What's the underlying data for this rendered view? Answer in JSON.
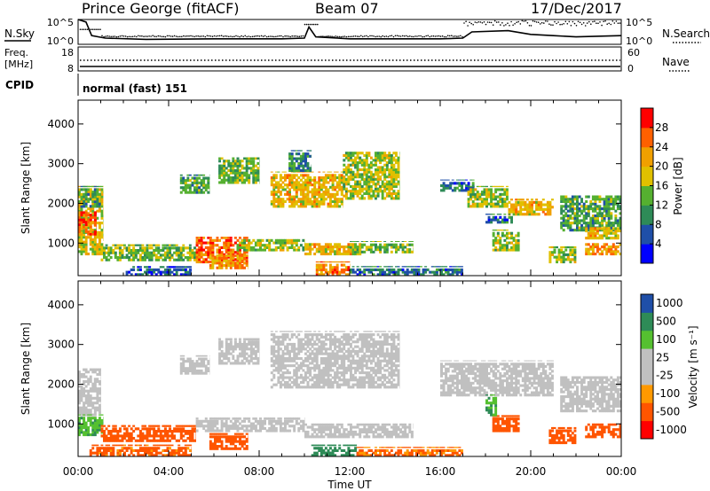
{
  "header": {
    "station": "Prince George (fitACF)",
    "beam": "Beam 07",
    "date": "17/Dec/2017"
  },
  "top_panels": {
    "nsky_label": "N.Sky",
    "nsky_ticks": [
      "10^5",
      "10^0"
    ],
    "nsearch_label": "N.Search",
    "nsearch_ticks": [
      "10^5",
      "10^0"
    ],
    "freq_label_line1": "Freq.",
    "freq_label_line2": "[MHz]",
    "freq_ticks": [
      "18",
      "8"
    ],
    "nave_label": "Nave",
    "nave_ticks": [
      "60",
      "0"
    ],
    "cpid_label": "CPID",
    "cpid_value": "normal (fast) 151"
  },
  "colors": {
    "power_scale": [
      "#0000ff",
      "#1f4fa8",
      "#2e8b57",
      "#55b030",
      "#e0c000",
      "#f0a000",
      "#ff6000",
      "#ff0000"
    ],
    "velocity_scale": [
      "#ff0000",
      "#ff5500",
      "#ff9900",
      "#c0c0c0",
      "#c0c0c0",
      "#55c030",
      "#2e8b57",
      "#1f4fa8"
    ]
  },
  "chart_data": [
    {
      "type": "heatmap",
      "title": "",
      "xlabel": "Time UT",
      "ylabel": "Slant Range [km]",
      "x_ticks": [
        "00:00",
        "04:00",
        "08:00",
        "12:00",
        "16:00",
        "20:00",
        "00:00"
      ],
      "x_range_hours": [
        0,
        24
      ],
      "y_ticks": [
        "1000",
        "2000",
        "3000",
        "4000"
      ],
      "ylim": [
        180,
        4600
      ],
      "colorbar": {
        "label": "Power [dB]",
        "ticks": [
          "4",
          "8",
          "12",
          "16",
          "20",
          "24",
          "28"
        ],
        "range": [
          0,
          32
        ]
      },
      "regions": [
        {
          "t0": 0.0,
          "t1": 1.1,
          "r0": 700,
          "r1": 2400,
          "value": 18
        },
        {
          "t0": 0.0,
          "t1": 0.8,
          "r0": 1200,
          "r1": 1800,
          "value": 26
        },
        {
          "t0": 0.1,
          "t1": 1.0,
          "r0": 1900,
          "r1": 2400,
          "value": 12
        },
        {
          "t0": 1.0,
          "t1": 5.2,
          "r0": 550,
          "r1": 950,
          "value": 14
        },
        {
          "t0": 2.0,
          "t1": 5.0,
          "r0": 180,
          "r1": 400,
          "value": 6
        },
        {
          "t0": 4.5,
          "t1": 5.8,
          "r0": 2250,
          "r1": 2700,
          "value": 12
        },
        {
          "t0": 5.2,
          "t1": 7.5,
          "r0": 500,
          "r1": 1150,
          "value": 26
        },
        {
          "t0": 5.8,
          "t1": 7.5,
          "r0": 350,
          "r1": 700,
          "value": 22
        },
        {
          "t0": 6.2,
          "t1": 8.0,
          "r0": 2500,
          "r1": 3150,
          "value": 14
        },
        {
          "t0": 7.0,
          "t1": 10.0,
          "r0": 800,
          "r1": 1100,
          "value": 16
        },
        {
          "t0": 8.5,
          "t1": 11.7,
          "r0": 1900,
          "r1": 2750,
          "value": 20
        },
        {
          "t0": 9.3,
          "t1": 10.3,
          "r0": 2800,
          "r1": 3300,
          "value": 10
        },
        {
          "t0": 10.0,
          "t1": 12.5,
          "r0": 700,
          "r1": 1000,
          "value": 20
        },
        {
          "t0": 10.5,
          "t1": 12.0,
          "r0": 180,
          "r1": 500,
          "value": 24
        },
        {
          "t0": 11.7,
          "t1": 14.2,
          "r0": 2100,
          "r1": 3300,
          "value": 16
        },
        {
          "t0": 12.0,
          "t1": 14.8,
          "r0": 750,
          "r1": 1000,
          "value": 14
        },
        {
          "t0": 12.0,
          "t1": 17.0,
          "r0": 180,
          "r1": 380,
          "value": 8
        },
        {
          "t0": 16.0,
          "t1": 17.5,
          "r0": 2300,
          "r1": 2550,
          "value": 8
        },
        {
          "t0": 17.2,
          "t1": 19.0,
          "r0": 1900,
          "r1": 2400,
          "value": 16
        },
        {
          "t0": 19.0,
          "t1": 21.0,
          "r0": 1700,
          "r1": 2100,
          "value": 20
        },
        {
          "t0": 18.3,
          "t1": 19.5,
          "r0": 800,
          "r1": 1300,
          "value": 16
        },
        {
          "t0": 18.0,
          "t1": 19.2,
          "r0": 1500,
          "r1": 1700,
          "value": 8
        },
        {
          "t0": 20.8,
          "t1": 22.0,
          "r0": 500,
          "r1": 900,
          "value": 16
        },
        {
          "t0": 21.3,
          "t1": 24.0,
          "r0": 1300,
          "r1": 2200,
          "value": 12
        },
        {
          "t0": 22.4,
          "t1": 24.0,
          "r0": 700,
          "r1": 1000,
          "value": 22
        },
        {
          "t0": 22.4,
          "t1": 24.0,
          "r0": 1100,
          "r1": 1400,
          "value": 20
        }
      ]
    },
    {
      "type": "heatmap",
      "title": "",
      "xlabel": "Time UT",
      "ylabel": "Slant Range [km]",
      "x_ticks": [
        "00:00",
        "04:00",
        "08:00",
        "12:00",
        "16:00",
        "20:00",
        "00:00"
      ],
      "x_range_hours": [
        0,
        24
      ],
      "y_ticks": [
        "1000",
        "2000",
        "3000",
        "4000"
      ],
      "ylim": [
        180,
        4600
      ],
      "colorbar": {
        "label": "Velocity [m s⁻¹]",
        "ticks": [
          "1000",
          "500",
          "100",
          "25",
          "-25",
          "-100",
          "-500",
          "-1000"
        ],
        "range": [
          -1000,
          1000
        ]
      },
      "regions": [
        {
          "t0": 0.0,
          "t1": 1.0,
          "r0": 1200,
          "r1": 2400,
          "value": 0
        },
        {
          "t0": 0.0,
          "t1": 1.1,
          "r0": 700,
          "r1": 1200,
          "value": 80
        },
        {
          "t0": 1.0,
          "t1": 5.2,
          "r0": 550,
          "r1": 950,
          "value": -300
        },
        {
          "t0": 0.5,
          "t1": 5.0,
          "r0": 180,
          "r1": 450,
          "value": -150
        },
        {
          "t0": 4.5,
          "t1": 5.8,
          "r0": 2250,
          "r1": 2700,
          "value": 0
        },
        {
          "t0": 5.2,
          "t1": 10.0,
          "r0": 800,
          "r1": 1150,
          "value": 0
        },
        {
          "t0": 5.8,
          "t1": 7.5,
          "r0": 350,
          "r1": 750,
          "value": -300
        },
        {
          "t0": 6.2,
          "t1": 8.0,
          "r0": 2500,
          "r1": 3150,
          "value": 0
        },
        {
          "t0": 8.5,
          "t1": 14.2,
          "r0": 1900,
          "r1": 3300,
          "value": 0
        },
        {
          "t0": 10.0,
          "t1": 14.8,
          "r0": 650,
          "r1": 1000,
          "value": 0
        },
        {
          "t0": 10.3,
          "t1": 12.3,
          "r0": 180,
          "r1": 450,
          "value": 300
        },
        {
          "t0": 12.3,
          "t1": 17.0,
          "r0": 180,
          "r1": 380,
          "value": -120
        },
        {
          "t0": 16.0,
          "t1": 21.0,
          "r0": 1700,
          "r1": 2550,
          "value": 0
        },
        {
          "t0": 18.3,
          "t1": 19.5,
          "r0": 800,
          "r1": 1200,
          "value": -300
        },
        {
          "t0": 18.0,
          "t1": 18.5,
          "r0": 1200,
          "r1": 1700,
          "value": 80
        },
        {
          "t0": 20.8,
          "t1": 22.0,
          "r0": 500,
          "r1": 900,
          "value": -300
        },
        {
          "t0": 21.3,
          "t1": 24.0,
          "r0": 1300,
          "r1": 2200,
          "value": 0
        },
        {
          "t0": 22.4,
          "t1": 24.0,
          "r0": 650,
          "r1": 1000,
          "value": -300
        }
      ]
    }
  ]
}
